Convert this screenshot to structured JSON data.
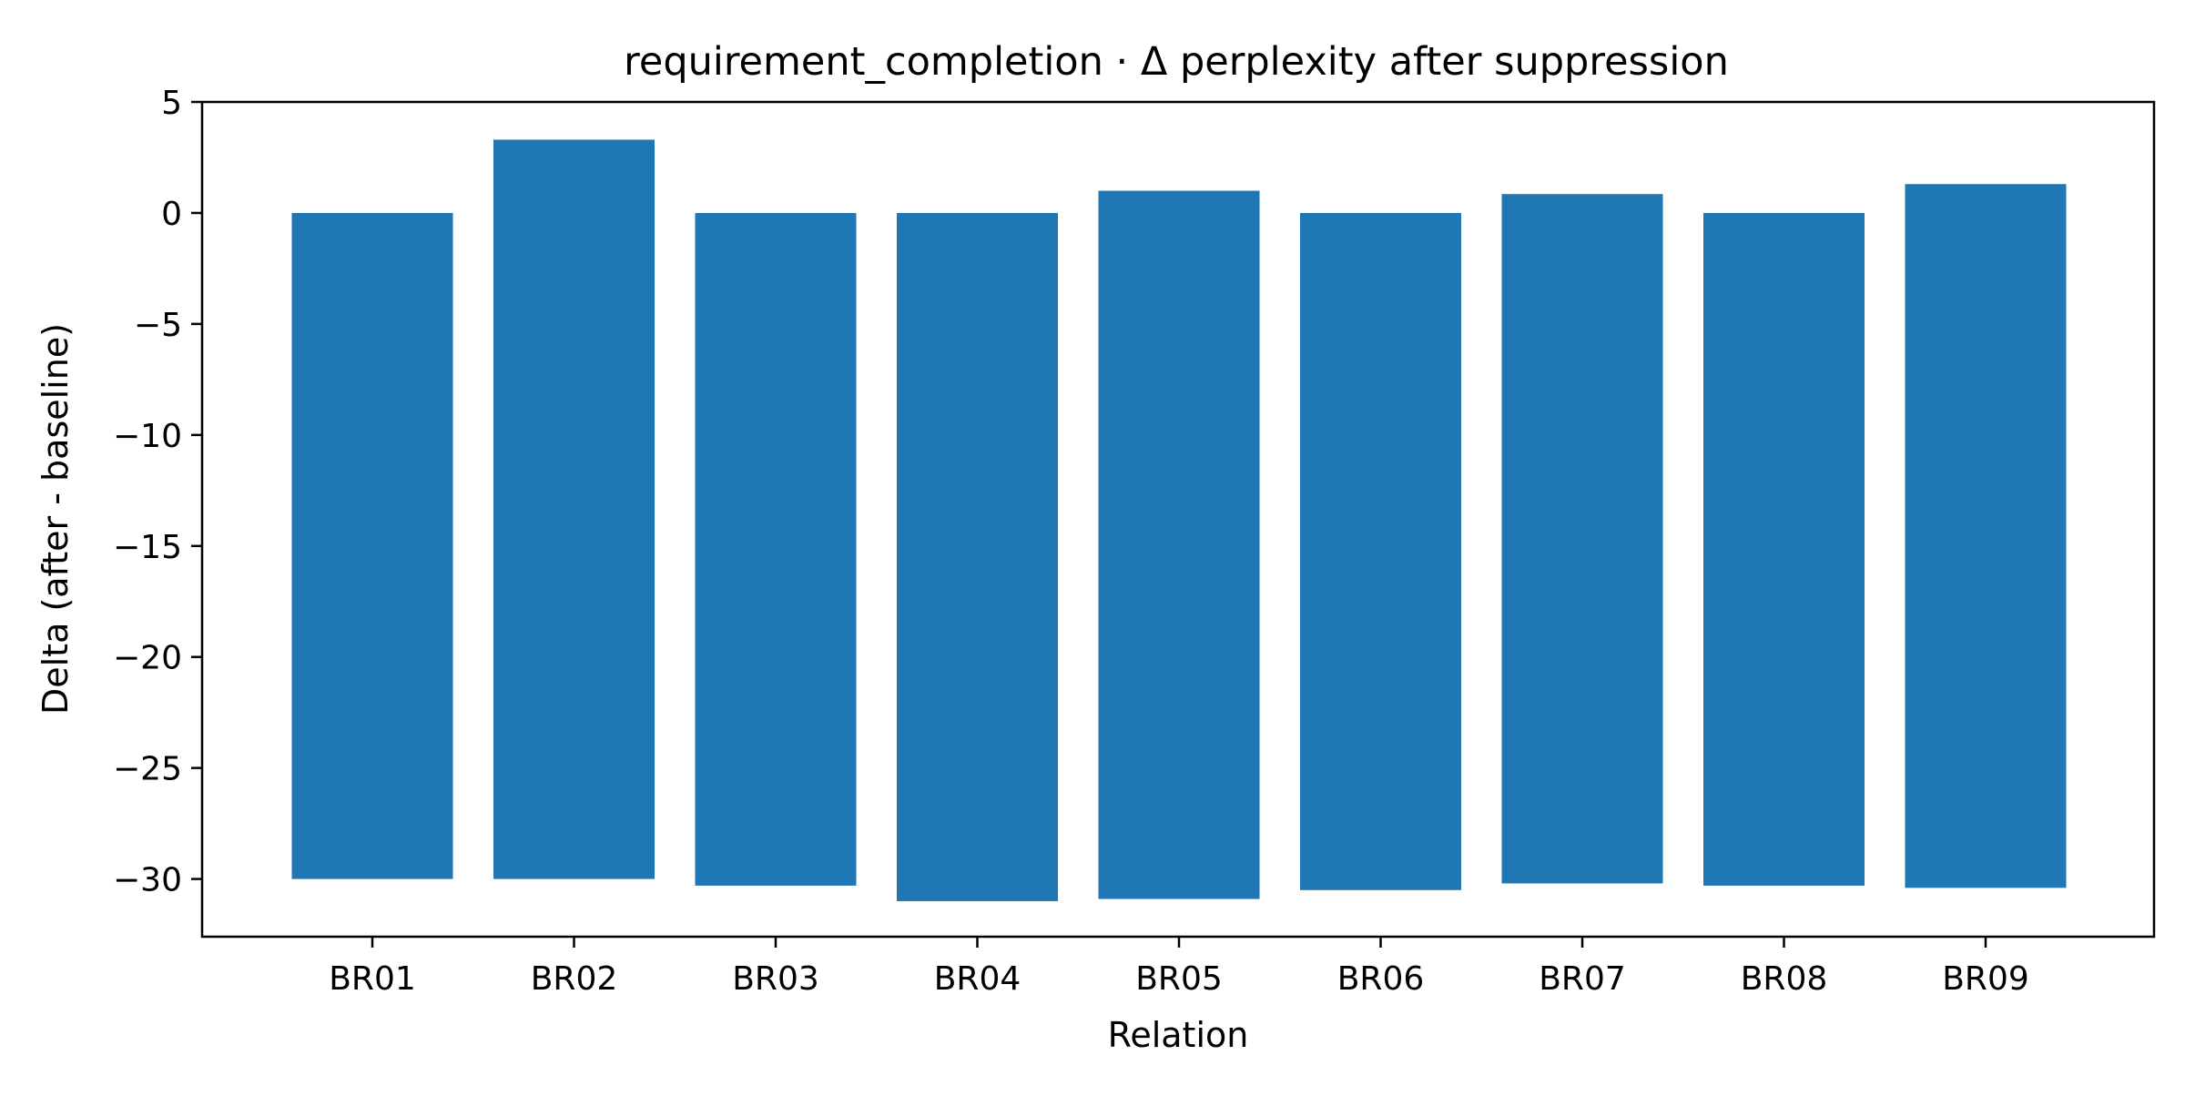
{
  "chart_data": {
    "type": "bar",
    "title": "requirement_completion · Δ perplexity after suppression",
    "xlabel": "Relation",
    "ylabel": "Delta (after - baseline)",
    "categories": [
      "BR01",
      "BR02",
      "BR03",
      "BR04",
      "BR05",
      "BR06",
      "BR07",
      "BR08",
      "BR09"
    ],
    "series": [
      {
        "label": "",
        "values": [
          -30.0,
          -30.0,
          -30.3,
          -31.0,
          -30.9,
          -30.5,
          -30.2,
          -30.3,
          -30.4
        ]
      },
      {
        "label": "",
        "values": [
          0.0,
          3.3,
          0.0,
          0.0,
          1.0,
          0.0,
          0.85,
          0.0,
          1.3
        ]
      }
    ],
    "yticks": [
      5,
      0,
      -5,
      -10,
      -15,
      -20,
      -25,
      -30
    ],
    "ylim": [
      -32.6,
      5
    ],
    "grid": false,
    "legend": "none",
    "colors": {
      "bar": "#1f77b4",
      "axis": "#000000",
      "background": "#ffffff"
    }
  }
}
